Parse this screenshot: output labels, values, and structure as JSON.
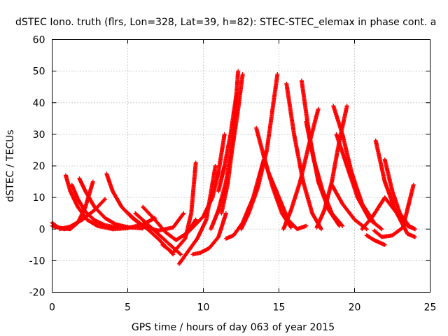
{
  "chart_data": {
    "type": "scatter",
    "title": "dSTEC Iono. truth (flrs, Lon=328, Lat=39, h=82): STEC-STEC_elemax in phase cont. a",
    "xlabel": "GPS time / hours of day 063 of year 2015",
    "ylabel": "dSTEC  / TECUs",
    "xlim": [
      0,
      25
    ],
    "ylim": [
      -20,
      60
    ],
    "xticks": [
      "0",
      "5",
      "10",
      "15",
      "20",
      "25"
    ],
    "yticks": [
      "-20",
      "-10",
      "0",
      "10",
      "20",
      "30",
      "40",
      "50",
      "60"
    ],
    "grid": true,
    "marker": "+",
    "color": "#ff0000",
    "series": [
      {
        "x": [
          0.0,
          0.6,
          1.2,
          1.7,
          2.2,
          2.7
        ],
        "y": [
          1.0,
          0.3,
          0.0,
          2.0,
          7.0,
          15.0
        ]
      },
      {
        "x": [
          0.0,
          0.4,
          0.8,
          1.2
        ],
        "y": [
          2.0,
          0.5,
          0.0,
          0.4
        ]
      },
      {
        "x": [
          0.9,
          1.2,
          1.7,
          2.3,
          3.0,
          4.0,
          5.0,
          6.0,
          6.8
        ],
        "y": [
          17.0,
          12.0,
          7.0,
          3.0,
          1.0,
          0.0,
          0.3,
          1.5,
          3.5
        ]
      },
      {
        "x": [
          1.3,
          1.7,
          2.2,
          2.8,
          3.5,
          4.3
        ],
        "y": [
          14.0,
          9.5,
          5.5,
          2.8,
          1.2,
          0.5
        ]
      },
      {
        "x": [
          1.8,
          2.2,
          2.8,
          3.5,
          4.2,
          5.0,
          6.0
        ],
        "y": [
          16.0,
          12.0,
          7.0,
          3.5,
          1.5,
          0.6,
          0.2
        ]
      },
      {
        "x": [
          0.5,
          1.2,
          2.0,
          2.8,
          3.5
        ],
        "y": [
          0.0,
          0.8,
          3.0,
          6.0,
          9.5
        ]
      },
      {
        "x": [
          3.6,
          4.0,
          4.6,
          5.3,
          6.0,
          7.0,
          8.0,
          8.7
        ],
        "y": [
          17.5,
          12.0,
          7.0,
          3.5,
          1.0,
          -0.5,
          0.5,
          5.0
        ]
      },
      {
        "x": [
          4.8,
          5.5,
          6.3,
          7.0,
          7.6,
          8.0
        ],
        "y": [
          6.0,
          3.0,
          0.0,
          -3.0,
          -6.0,
          -8.0
        ]
      },
      {
        "x": [
          5.5,
          6.2,
          7.0,
          7.8,
          8.5
        ],
        "y": [
          5.0,
          2.0,
          -1.5,
          -5.0,
          -8.0
        ]
      },
      {
        "x": [
          6.0,
          6.7,
          7.5,
          8.2,
          9.0,
          9.5
        ],
        "y": [
          7.0,
          3.5,
          -1.0,
          -3.5,
          -1.0,
          3.0
        ]
      },
      {
        "x": [
          7.3,
          8.0,
          8.8,
          9.2,
          9.5
        ],
        "y": [
          -5.0,
          -7.5,
          -3.0,
          5.0,
          21.0
        ]
      },
      {
        "x": [
          8.4,
          9.0,
          9.6,
          10.2,
          10.8
        ],
        "y": [
          -11.0,
          -7.0,
          -3.0,
          3.0,
          20.0
        ]
      },
      {
        "x": [
          9.3,
          9.8,
          10.4,
          11.0,
          11.5
        ],
        "y": [
          -8.0,
          -7.5,
          -6.0,
          -2.5,
          5.0
        ]
      },
      {
        "x": [
          9.2,
          10.0,
          10.6,
          11.0,
          11.4
        ],
        "y": [
          0.0,
          4.0,
          10.0,
          18.0,
          30.0
        ]
      },
      {
        "x": [
          10.5,
          11.0,
          11.5,
          12.0,
          12.3
        ],
        "y": [
          0.0,
          6.0,
          15.0,
          30.0,
          50.0
        ]
      },
      {
        "x": [
          11.2,
          11.6,
          11.9,
          12.3,
          12.6
        ],
        "y": [
          5.0,
          14.0,
          25.0,
          38.0,
          49.0
        ]
      },
      {
        "x": [
          11.0,
          11.4,
          11.8,
          12.2
        ],
        "y": [
          12.0,
          20.0,
          30.0,
          43.0
        ]
      },
      {
        "x": [
          11.5,
          12.0,
          12.6,
          13.3,
          14.0
        ],
        "y": [
          -3.0,
          -2.0,
          2.0,
          10.0,
          22.0
        ]
      },
      {
        "x": [
          12.5,
          13.0,
          13.6,
          14.2,
          14.9
        ],
        "y": [
          0.0,
          5.0,
          13.0,
          25.0,
          49.0
        ]
      },
      {
        "x": [
          13.5,
          14.0,
          14.6,
          15.2,
          15.8
        ],
        "y": [
          32.0,
          23.0,
          13.0,
          5.0,
          0.5
        ]
      },
      {
        "x": [
          14.3,
          15.0,
          15.6,
          16.2,
          16.8
        ],
        "y": [
          18.0,
          10.0,
          3.0,
          0.0,
          1.0
        ]
      },
      {
        "x": [
          15.5,
          16.0,
          16.6,
          17.2,
          17.8
        ],
        "y": [
          46.0,
          30.0,
          15.0,
          5.0,
          0.0
        ]
      },
      {
        "x": [
          16.5,
          17.0,
          17.6,
          18.3,
          19.0
        ],
        "y": [
          47.0,
          30.0,
          15.0,
          6.0,
          1.0
        ]
      },
      {
        "x": [
          15.3,
          15.8,
          16.4,
          17.0,
          17.6
        ],
        "y": [
          0.0,
          6.0,
          15.0,
          27.0,
          38.0
        ]
      },
      {
        "x": [
          16.8,
          17.3,
          17.9,
          18.5,
          19.2
        ],
        "y": [
          34.0,
          22.0,
          12.0,
          5.0,
          1.0
        ]
      },
      {
        "x": [
          17.5,
          18.0,
          18.5,
          19.0,
          19.5
        ],
        "y": [
          0.5,
          6.0,
          15.0,
          28.0,
          39.0
        ]
      },
      {
        "x": [
          18.6,
          19.2,
          19.8,
          20.5,
          21.3
        ],
        "y": [
          39.0,
          30.0,
          18.0,
          8.0,
          2.0
        ]
      },
      {
        "x": [
          18.8,
          19.5,
          20.2,
          21.0,
          21.8
        ],
        "y": [
          30.0,
          20.0,
          10.0,
          3.0,
          0.0
        ]
      },
      {
        "x": [
          18.5,
          19.2,
          20.0,
          20.8
        ],
        "y": [
          14.0,
          8.0,
          3.0,
          0.0
        ]
      },
      {
        "x": [
          21.3,
          21.8,
          22.5,
          23.2,
          23.9
        ],
        "y": [
          -0.5,
          -2.5,
          -2.0,
          0.5,
          14.0
        ]
      },
      {
        "x": [
          20.8,
          21.3,
          22.0
        ],
        "y": [
          -2.0,
          -3.5,
          -5.0
        ]
      },
      {
        "x": [
          21.4,
          22.0,
          22.7,
          23.5,
          24.0
        ],
        "y": [
          28.0,
          15.0,
          6.0,
          1.0,
          0.0
        ]
      },
      {
        "x": [
          22.0,
          22.5,
          23.0,
          23.6,
          24.0
        ],
        "y": [
          22.0,
          12.0,
          5.0,
          1.0,
          0.0
        ]
      },
      {
        "x": [
          20.5,
          21.2,
          22.0,
          22.8,
          23.5,
          24.0
        ],
        "y": [
          0.0,
          4.0,
          10.0,
          5.0,
          -1.5,
          -2.5
        ]
      }
    ]
  }
}
